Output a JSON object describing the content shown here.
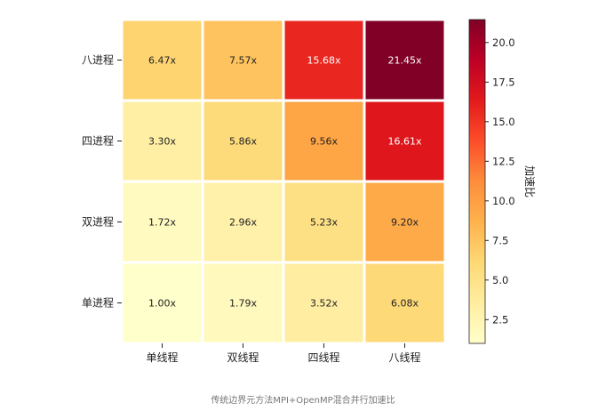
{
  "chart_data": {
    "type": "heatmap",
    "rows": [
      "八进程",
      "四进程",
      "双进程",
      "单进程"
    ],
    "columns": [
      "单线程",
      "双线程",
      "四线程",
      "八线程"
    ],
    "values": [
      [
        6.47,
        7.57,
        15.68,
        21.45
      ],
      [
        3.3,
        5.86,
        9.56,
        16.61
      ],
      [
        1.72,
        2.96,
        5.23,
        9.2
      ],
      [
        1.0,
        1.79,
        3.52,
        6.08
      ]
    ],
    "cell_labels": [
      [
        "6.47x",
        "7.57x",
        "15.68x",
        "21.45x"
      ],
      [
        "3.30x",
        "5.86x",
        "9.56x",
        "16.61x"
      ],
      [
        "1.72x",
        "2.96x",
        "5.23x",
        "9.20x"
      ],
      [
        "1.00x",
        "1.79x",
        "3.52x",
        "6.08x"
      ]
    ],
    "colormap": "YlOrRd",
    "vmin": 1.0,
    "vmax": 21.45,
    "colorbar": {
      "label": "加速比",
      "ticks": [
        2.5,
        5.0,
        7.5,
        10.0,
        12.5,
        15.0,
        17.5,
        20.0
      ],
      "tick_labels": [
        "2.5",
        "5.0",
        "7.5",
        "10.0",
        "12.5",
        "15.0",
        "17.5",
        "20.0"
      ]
    },
    "title": "传统边界元方法MPI+OpenMP混合并行加速比",
    "xlabel": "",
    "ylabel": "",
    "grid": false
  }
}
